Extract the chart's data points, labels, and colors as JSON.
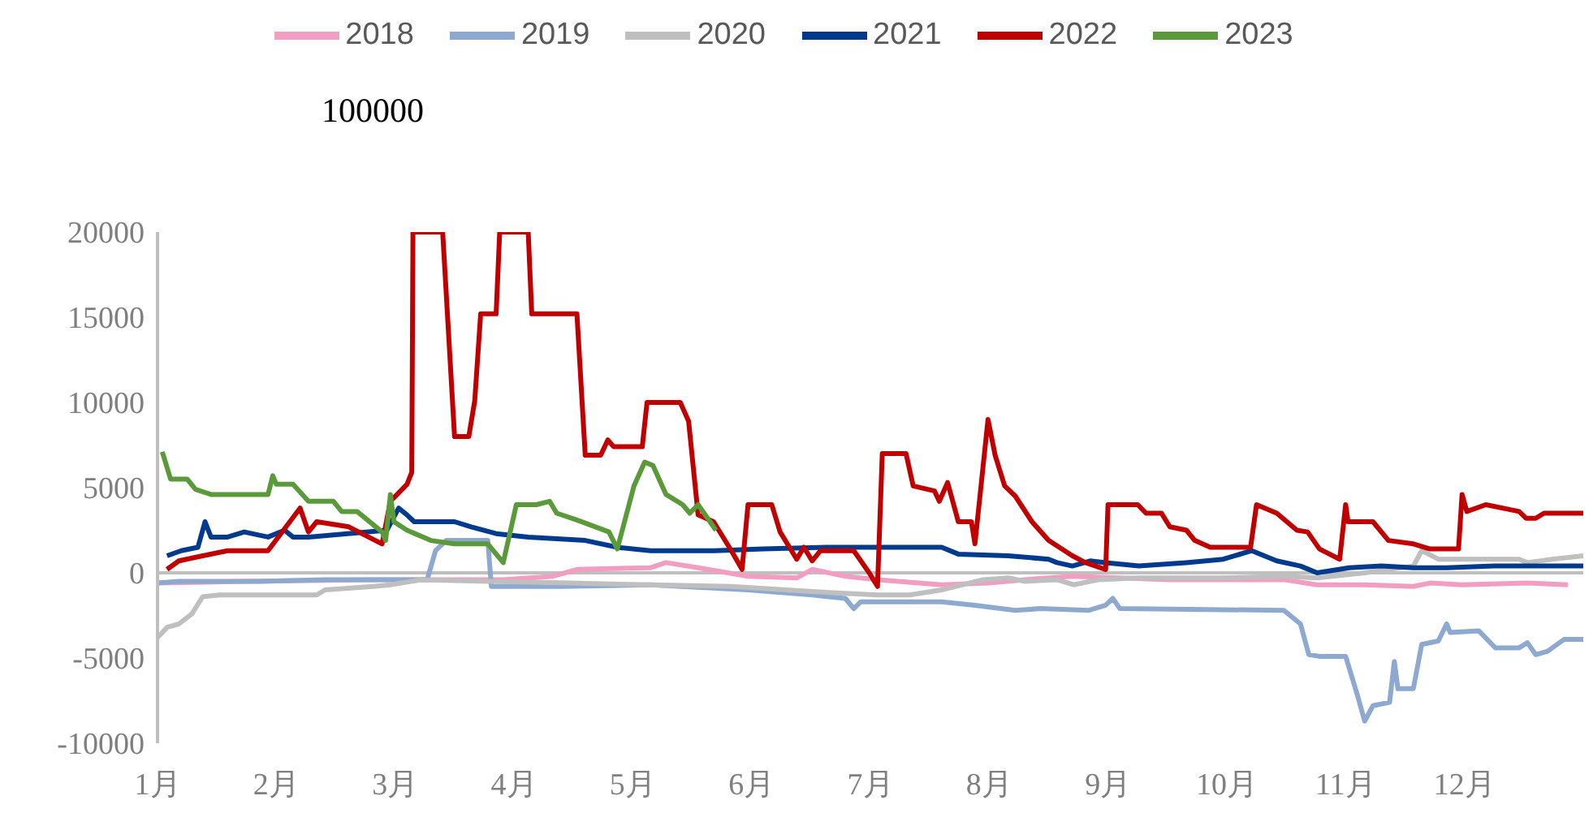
{
  "chart_data": {
    "type": "line",
    "annotations": [
      "100000"
    ],
    "xlim": [
      1,
      13
    ],
    "xticks": [
      {
        "value": 1,
        "label": "1月"
      },
      {
        "value": 2,
        "label": "2月"
      },
      {
        "value": 3,
        "label": "3月"
      },
      {
        "value": 4,
        "label": "4月"
      },
      {
        "value": 5,
        "label": "5月"
      },
      {
        "value": 6,
        "label": "6月"
      },
      {
        "value": 7,
        "label": "7月"
      },
      {
        "value": 8,
        "label": "8月"
      },
      {
        "value": 9,
        "label": "9月"
      },
      {
        "value": 10,
        "label": "10月"
      },
      {
        "value": 11,
        "label": "11月"
      },
      {
        "value": 12,
        "label": "12月"
      }
    ],
    "ylim": [
      -10000,
      20000
    ],
    "yticks": [
      -10000,
      -5000,
      0,
      5000,
      10000,
      15000,
      20000
    ],
    "grid": false,
    "legend": "top",
    "marker": "none",
    "line_style": "solid",
    "ref_lines": [
      {
        "axis": "y",
        "value": 0,
        "color": "#bfbfbf"
      }
    ],
    "series": [
      {
        "name": "2018",
        "color": "#f19ec2",
        "x": [
          1.0,
          1.73,
          2.82,
          3.91,
          4.33,
          4.53,
          5.15,
          5.28,
          5.55,
          5.97,
          6.38,
          6.51,
          6.79,
          7.06,
          7.6,
          8.0,
          8.3,
          8.7,
          9.1,
          9.52,
          10.48,
          10.76,
          11.16,
          11.57,
          11.71,
          11.98,
          12.53,
          12.87
        ],
        "values": [
          -600,
          -500,
          -400,
          -400,
          -200,
          200,
          300,
          600,
          300,
          -200,
          -300,
          200,
          -200,
          -400,
          -700,
          -600,
          -400,
          -200,
          -300,
          -400,
          -400,
          -700,
          -700,
          -800,
          -600,
          -700,
          -600,
          -700
        ]
      },
      {
        "name": "2019",
        "color": "#8ea9d0",
        "x": [
          1.0,
          1.18,
          1.86,
          2.41,
          2.96,
          3.27,
          3.34,
          3.43,
          3.78,
          3.81,
          4.4,
          5.15,
          5.97,
          6.51,
          6.79,
          6.86,
          6.92,
          7.6,
          7.88,
          8.22,
          8.43,
          8.84,
          8.98,
          9.04,
          9.1,
          10.48,
          10.62,
          10.69,
          10.78,
          11.0,
          11.1,
          11.16,
          11.23,
          11.37,
          11.41,
          11.44,
          11.57,
          11.64,
          11.78,
          11.85,
          11.88,
          12.12,
          12.26,
          12.46,
          12.53,
          12.6,
          12.7,
          12.84,
          13.0
        ],
        "values": [
          -600,
          -500,
          -500,
          -400,
          -400,
          -400,
          1300,
          1900,
          1900,
          -800,
          -800,
          -700,
          -1000,
          -1300,
          -1500,
          -2100,
          -1700,
          -1700,
          -1900,
          -2200,
          -2100,
          -2200,
          -1900,
          -1500,
          -2100,
          -2200,
          -3000,
          -4800,
          -4900,
          -4900,
          -7200,
          -8700,
          -7800,
          -7600,
          -5200,
          -6800,
          -6800,
          -4200,
          -4000,
          -3000,
          -3500,
          -3400,
          -4400,
          -4400,
          -4100,
          -4800,
          -4600,
          -3900,
          -3900
        ]
      },
      {
        "name": "2020",
        "color": "#bfbfbf",
        "x": [
          1.0,
          1.08,
          1.18,
          1.29,
          1.38,
          1.52,
          1.73,
          2.34,
          2.41,
          2.82,
          2.96,
          3.23,
          3.78,
          4.46,
          5.15,
          5.83,
          6.51,
          7.06,
          7.33,
          7.6,
          7.95,
          8.16,
          8.3,
          8.57,
          8.71,
          8.92,
          9.26,
          9.95,
          10.48,
          10.76,
          11.16,
          11.57,
          11.64,
          11.78,
          12.46,
          12.53,
          12.74,
          13.0
        ],
        "values": [
          -3800,
          -3200,
          -3000,
          -2400,
          -1400,
          -1300,
          -1300,
          -1300,
          -1000,
          -800,
          -700,
          -400,
          -500,
          -600,
          -700,
          -800,
          -1100,
          -1300,
          -1300,
          -1000,
          -400,
          -300,
          -500,
          -400,
          -700,
          -400,
          -300,
          -300,
          -200,
          -300,
          0,
          400,
          1300,
          800,
          800,
          600,
          800,
          1000
        ]
      },
      {
        "name": "2021",
        "color": "#003a8c",
        "x": [
          1.08,
          1.2,
          1.34,
          1.4,
          1.45,
          1.59,
          1.73,
          1.93,
          2.07,
          2.14,
          2.27,
          2.93,
          3.03,
          3.1,
          3.16,
          3.5,
          3.64,
          3.85,
          4.12,
          4.6,
          4.87,
          5.15,
          5.69,
          6.1,
          6.65,
          7.6,
          7.74,
          8.16,
          8.5,
          8.57,
          8.7,
          8.85,
          8.98,
          9.26,
          9.66,
          9.97,
          10.21,
          10.42,
          10.62,
          10.76,
          11.03,
          11.3,
          11.57,
          11.85,
          12.25,
          13.0
        ],
        "values": [
          1000,
          1300,
          1500,
          3000,
          2100,
          2100,
          2400,
          2100,
          2500,
          2100,
          2100,
          2500,
          3800,
          3400,
          3000,
          3000,
          2700,
          2300,
          2100,
          1900,
          1500,
          1300,
          1300,
          1400,
          1500,
          1500,
          1100,
          1000,
          800,
          600,
          400,
          700,
          600,
          400,
          600,
          800,
          1300,
          700,
          400,
          0,
          300,
          400,
          300,
          300,
          400,
          400
        ]
      },
      {
        "name": "2022",
        "color": "#c00000",
        "x": [
          1.08,
          1.18,
          1.38,
          1.59,
          1.93,
          2.2,
          2.27,
          2.34,
          2.61,
          2.89,
          2.96,
          3.1,
          3.14,
          3.15,
          3.4,
          3.5,
          3.62,
          3.67,
          3.72,
          3.85,
          3.88,
          4.12,
          4.15,
          4.53,
          4.6,
          4.73,
          4.79,
          4.84,
          5.08,
          5.12,
          5.4,
          5.47,
          5.55,
          5.68,
          5.83,
          5.92,
          5.97,
          6.17,
          6.24,
          6.38,
          6.44,
          6.51,
          6.58,
          6.86,
          6.99,
          7.06,
          7.1,
          7.3,
          7.36,
          7.54,
          7.58,
          7.65,
          7.74,
          7.85,
          7.88,
          7.99,
          8.05,
          8.13,
          8.22,
          8.36,
          8.5,
          8.7,
          8.81,
          8.98,
          9.0,
          9.25,
          9.32,
          9.45,
          9.52,
          9.66,
          9.73,
          9.86,
          10.2,
          10.25,
          10.42,
          10.59,
          10.68,
          10.78,
          10.95,
          11.0,
          11.02,
          11.23,
          11.36,
          11.57,
          11.71,
          11.95,
          11.98,
          12.02,
          12.18,
          12.46,
          12.52,
          12.6,
          12.67,
          13.0
        ],
        "values": [
          200,
          700,
          1000,
          1300,
          1300,
          3800,
          2400,
          3000,
          2700,
          1700,
          4200,
          5200,
          5900,
          20000,
          20000,
          8000,
          8000,
          10100,
          15200,
          15200,
          20000,
          20000,
          15200,
          15200,
          6900,
          6900,
          7800,
          7400,
          7400,
          10000,
          10000,
          8900,
          3400,
          3000,
          1300,
          200,
          4000,
          4000,
          2400,
          800,
          1500,
          700,
          1300,
          1300,
          0,
          -800,
          7000,
          7000,
          5100,
          4800,
          4200,
          5300,
          3000,
          3000,
          1700,
          9000,
          6900,
          5100,
          4500,
          3000,
          1900,
          1000,
          600,
          200,
          4000,
          4000,
          3500,
          3500,
          2700,
          2500,
          1900,
          1500,
          1500,
          4000,
          3500,
          2500,
          2400,
          1400,
          800,
          4000,
          3000,
          3000,
          1900,
          1700,
          1400,
          1400,
          4600,
          3600,
          4000,
          3600,
          3200,
          3200,
          3500,
          3500
        ]
      },
      {
        "name": "2023",
        "color": "#5b9a3a",
        "x": [
          1.04,
          1.11,
          1.25,
          1.32,
          1.45,
          1.93,
          1.97,
          2.0,
          2.14,
          2.27,
          2.48,
          2.55,
          2.68,
          2.89,
          2.92,
          2.96,
          2.99,
          3.1,
          3.3,
          3.5,
          3.78,
          3.91,
          4.02,
          4.19,
          4.3,
          4.36,
          4.53,
          4.8,
          4.87,
          5.01,
          5.1,
          5.17,
          5.28,
          5.42,
          5.48,
          5.55,
          5.7
        ],
        "values": [
          7100,
          5500,
          5500,
          4900,
          4600,
          4600,
          5700,
          5200,
          5200,
          4200,
          4200,
          3600,
          3600,
          2400,
          1900,
          4600,
          3000,
          2500,
          1900,
          1700,
          1700,
          600,
          4000,
          4000,
          4200,
          3500,
          3100,
          2400,
          1400,
          5100,
          6500,
          6300,
          4600,
          4000,
          3500,
          4000,
          2500
        ]
      }
    ]
  }
}
